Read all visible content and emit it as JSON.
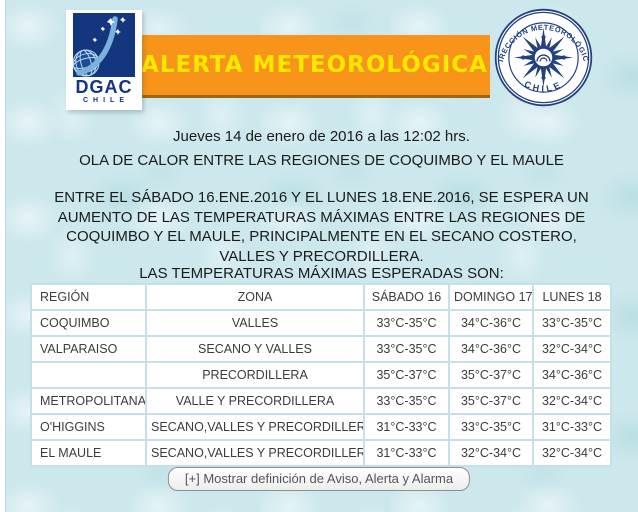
{
  "header": {
    "dgac_logo": {
      "acronym": "DGAC",
      "country": "CHILE"
    },
    "banner_title": "ALERTA METEOROLÓGICA",
    "seal": {
      "arc_text": "DIRECCIÓN METEOROLÓGICA",
      "bottom_text": "CHILE"
    }
  },
  "alert": {
    "date_line": "Jueves 14 de enero de 2016 a las 12:02 hrs.",
    "headline": "OLA DE CALOR ENTRE LAS REGIONES DE COQUIMBO Y EL MAULE",
    "body": "ENTRE EL SÁBADO 16.ENE.2016 Y EL LUNES 18.ENE.2016, SE ESPERA UN\nAUMENTO DE LAS TEMPERATURAS MÁXIMAS ENTRE LAS REGIONES DE\nCOQUIMBO Y EL MAULE, PRINCIPALMENTE EN EL SECANO COSTERO,\nVALLES Y PRECORDILLERA.",
    "table_intro": "LAS TEMPERATURAS MÁXIMAS ESPERADAS SON:"
  },
  "table": {
    "headers": [
      "REGIÓN",
      "ZONA",
      "SÁBADO 16",
      "DOMINGO 17",
      "LUNES 18"
    ],
    "rows": [
      [
        "COQUIMBO",
        "VALLES",
        "33°C-35°C",
        "34°C-36°C",
        "33°C-35°C"
      ],
      [
        "VALPARAISO",
        "SECANO Y VALLES",
        "33°C-35°C",
        "34°C-36°C",
        "32°C-34°C"
      ],
      [
        "",
        "PRECORDILLERA",
        "35°C-37°C",
        "35°C-37°C",
        "34°C-36°C"
      ],
      [
        "METROPOLITANA",
        "VALLE Y PRECORDILLERA",
        "33°C-35°C",
        "35°C-37°C",
        "32°C-34°C"
      ],
      [
        "O'HIGGINS",
        "SECANO,VALLES Y PRECORDILLERA",
        "31°C-33°C",
        "33°C-35°C",
        "31°C-33°C"
      ],
      [
        "EL MAULE",
        "SECANO,VALLES Y PRECORDILLERA",
        "31°C-33°C",
        "32°C-34°C",
        "32°C-34°C"
      ]
    ]
  },
  "footer": {
    "toggle_definitions_label": "[+] Mostrar definición de Aviso, Alerta y Alarma"
  },
  "colors": {
    "background": "#cde8ec",
    "banner_orange": "#f79419",
    "banner_text_yellow": "#ffe800",
    "logo_navy": "#14367e",
    "table_border": "#c6e0e9",
    "table_text": "#3c3c3c",
    "body_text": "#1b1b1b"
  }
}
